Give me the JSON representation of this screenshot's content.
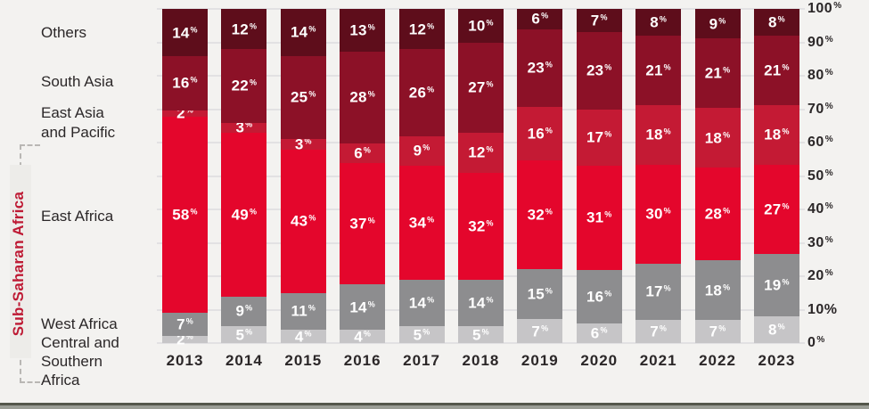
{
  "chart_data": {
    "type": "bar",
    "stacked": true,
    "orientation": "vertical",
    "unit": "%",
    "categories": [
      "2013",
      "2014",
      "2015",
      "2016",
      "2017",
      "2018",
      "2019",
      "2020",
      "2021",
      "2022",
      "2023"
    ],
    "series": [
      {
        "name": "Central and Southern Africa",
        "color": "#c6c5c7",
        "values": [
          2,
          5,
          4,
          4,
          5,
          5,
          7,
          6,
          7,
          7,
          8
        ]
      },
      {
        "name": "West Africa",
        "color": "#8d8d8f",
        "values": [
          7,
          9,
          11,
          14,
          14,
          14,
          15,
          16,
          17,
          18,
          19
        ]
      },
      {
        "name": "East Africa",
        "color": "#e4062c",
        "values": [
          58,
          49,
          43,
          37,
          34,
          32,
          32,
          31,
          30,
          28,
          27
        ]
      },
      {
        "name": "East Asia and Pacific",
        "color": "#c41a34",
        "values": [
          2,
          3,
          3,
          6,
          9,
          12,
          16,
          17,
          18,
          18,
          18
        ]
      },
      {
        "name": "South Asia",
        "color": "#8c1127",
        "values": [
          16,
          22,
          25,
          28,
          26,
          27,
          23,
          23,
          21,
          21,
          21
        ]
      },
      {
        "name": "Others",
        "color": "#5e0d1b",
        "values": [
          14,
          12,
          14,
          13,
          12,
          10,
          6,
          7,
          8,
          9,
          8
        ]
      }
    ],
    "series_order_note": "bottom-to-top",
    "y_axis": {
      "min": 0,
      "max": 100,
      "ticks": [
        100,
        90,
        80,
        70,
        60,
        50,
        40,
        30,
        20,
        10,
        0
      ],
      "full_percent_ticks": [
        10
      ]
    },
    "row_labels": {
      "others": "Others",
      "south_asia": "South Asia",
      "east_asia_pacific": "East Asia\nand Pacific",
      "east_africa": "East Africa",
      "west_africa": "West Africa",
      "central_southern_africa": "Central and\nSouthern\nAfrica"
    },
    "group_label": "Sub-Saharan Africa",
    "grid": true,
    "legend_position": "left-row-labels",
    "colors": {
      "background": "#f3f2f0",
      "gridline": "#e2e1e3",
      "segment_label_text": "#ffffff",
      "axis_text": "#2b2728",
      "group_label_text": "#be1a34"
    }
  }
}
